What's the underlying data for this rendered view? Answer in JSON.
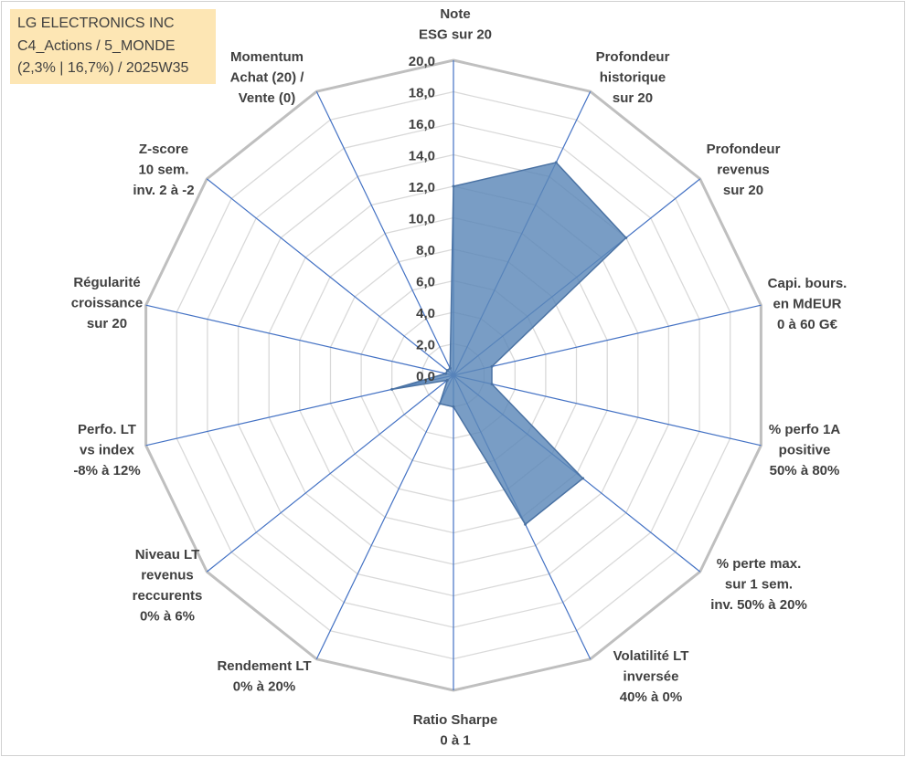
{
  "info_box": {
    "line1": "LG ELECTRONICS INC",
    "line2": "C4_Actions / 5_MONDE",
    "line3": "(2,3% | 16,7%) / 2025W35"
  },
  "colors": {
    "fill": "#5b87b8",
    "stroke": "#4a72a3",
    "grid_outer": "#bfbfbf",
    "grid_inner": "#d9d9d9",
    "spoke": "#4472c4"
  },
  "chart_data": {
    "type": "radar",
    "rmax": 20,
    "ticks": [
      "0,0",
      "2,0",
      "4,0",
      "6,0",
      "8,0",
      "10,0",
      "12,0",
      "14,0",
      "16,0",
      "18,0",
      "20,0"
    ],
    "categories": [
      [
        "Note",
        "ESG sur 20"
      ],
      [
        "Profondeur",
        "historique",
        "sur 20"
      ],
      [
        "Profondeur",
        "revenus",
        "sur 20"
      ],
      [
        "Capi. bours.",
        "en MdEUR",
        "0 à 60 G€"
      ],
      [
        "% perfo 1A",
        "positive",
        "50% à 80%"
      ],
      [
        "% perte max.",
        "sur 1 sem.",
        "inv. 50% à 20%"
      ],
      [
        "Volatilité LT",
        "inversée",
        "40% à 0%"
      ],
      [
        "Ratio Sharpe",
        "0 à 1"
      ],
      [
        "Rendement LT",
        "0% à 20%"
      ],
      [
        "Niveau LT",
        "revenus",
        "reccurents",
        "0% à 6%"
      ],
      [
        "Perfo. LT",
        "vs index",
        "-8% à 12%"
      ],
      [
        "Régularité",
        "croissance",
        "sur 20"
      ],
      [
        "Z-score",
        "10 sem.",
        "inv. 2 à -2"
      ],
      [
        "Momentum",
        "Achat (20) /",
        "Vente (0)"
      ]
    ],
    "series": [
      {
        "values": [
          12.0,
          15.0,
          14.0,
          2.5,
          2.5,
          10.5,
          10.5,
          2.0,
          2.0,
          0.5,
          4.0,
          0.5,
          0.5,
          0.5
        ]
      }
    ],
    "grid": true,
    "legend": "none"
  }
}
